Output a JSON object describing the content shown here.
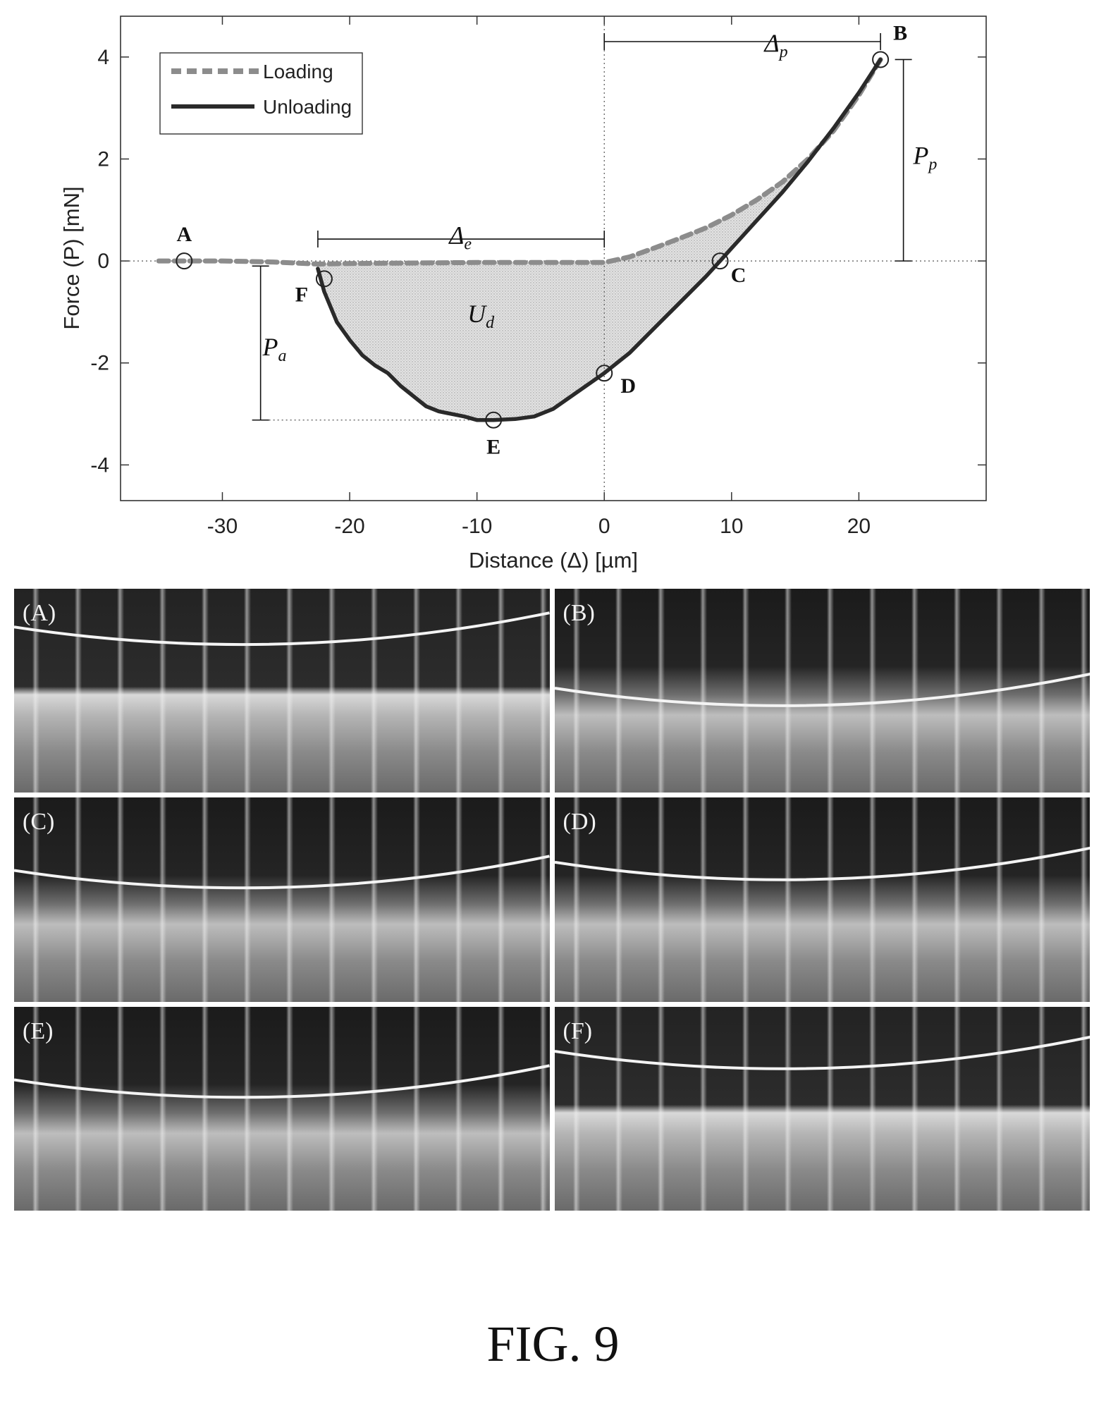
{
  "chart_data": {
    "type": "line",
    "xlabel": "Distance (Δ) [µm]",
    "ylabel": "Force (P) [mN]",
    "xlim": [
      -38,
      30
    ],
    "ylim": [
      -4.7,
      4.8
    ],
    "xticks": [
      -30,
      -20,
      -10,
      0,
      10,
      20
    ],
    "yticks": [
      -4,
      -2,
      0,
      2,
      4
    ],
    "legend_position": "top-left",
    "series": [
      {
        "name": "Loading",
        "style": "dashed",
        "color": "#8c8c8c",
        "x": [
          -35,
          -33,
          -30,
          -26,
          -22.5,
          -20,
          -15,
          -10,
          -5,
          0,
          2,
          4,
          6,
          8,
          10,
          12,
          14,
          16,
          18,
          20,
          21.7
        ],
        "y": [
          0,
          0,
          0,
          -0.02,
          -0.06,
          -0.05,
          -0.04,
          -0.03,
          -0.03,
          -0.03,
          0.08,
          0.26,
          0.45,
          0.65,
          0.9,
          1.2,
          1.55,
          2.0,
          2.55,
          3.25,
          3.95
        ]
      },
      {
        "name": "Unloading",
        "style": "solid",
        "color": "#2a2a2a",
        "x": [
          21.7,
          20,
          18,
          16,
          14,
          12,
          10,
          9.1,
          8,
          6,
          4,
          2,
          0,
          -2,
          -4,
          -5.5,
          -7,
          -8.7,
          -10,
          -11,
          -12,
          -13,
          -14,
          -15,
          -16,
          -17,
          -18,
          -19,
          -20,
          -21,
          -22,
          -22.5
        ],
        "y": [
          3.95,
          3.3,
          2.6,
          1.95,
          1.35,
          0.8,
          0.25,
          0.0,
          -0.3,
          -0.8,
          -1.3,
          -1.8,
          -2.2,
          -2.55,
          -2.9,
          -3.05,
          -3.1,
          -3.12,
          -3.12,
          -3.05,
          -3.0,
          -2.95,
          -2.85,
          -2.65,
          -2.45,
          -2.2,
          -2.05,
          -1.85,
          -1.55,
          -1.2,
          -0.6,
          -0.15
        ]
      }
    ],
    "key_points": [
      {
        "label": "A",
        "x": -33,
        "y": 0.0
      },
      {
        "label": "B",
        "x": 21.7,
        "y": 3.95
      },
      {
        "label": "C",
        "x": 9.1,
        "y": 0.0
      },
      {
        "label": "D",
        "x": 0.0,
        "y": -2.2
      },
      {
        "label": "E",
        "x": -8.7,
        "y": -3.12
      },
      {
        "label": "F",
        "x": -22.0,
        "y": -0.35
      }
    ],
    "annotations": {
      "delta_p": {
        "main": "Δ",
        "sub": "p"
      },
      "delta_e": {
        "main": "Δ",
        "sub": "e"
      },
      "p_p": {
        "main": "P",
        "sub": "p"
      },
      "p_a": {
        "main": "P",
        "sub": "a"
      },
      "u_d": {
        "main": "U",
        "sub": "d"
      }
    }
  },
  "panels": [
    {
      "label": "(A)",
      "tone": "pa",
      "curve_y": 0.25
    },
    {
      "label": "(B)",
      "tone": "",
      "curve_y": 0.55
    },
    {
      "label": "(C)",
      "tone": "",
      "curve_y": 0.42
    },
    {
      "label": "(D)",
      "tone": "",
      "curve_y": 0.38
    },
    {
      "label": "(E)",
      "tone": "",
      "curve_y": 0.42
    },
    {
      "label": "(F)",
      "tone": "pa",
      "curve_y": 0.28
    }
  ],
  "caption": "FIG. 9"
}
